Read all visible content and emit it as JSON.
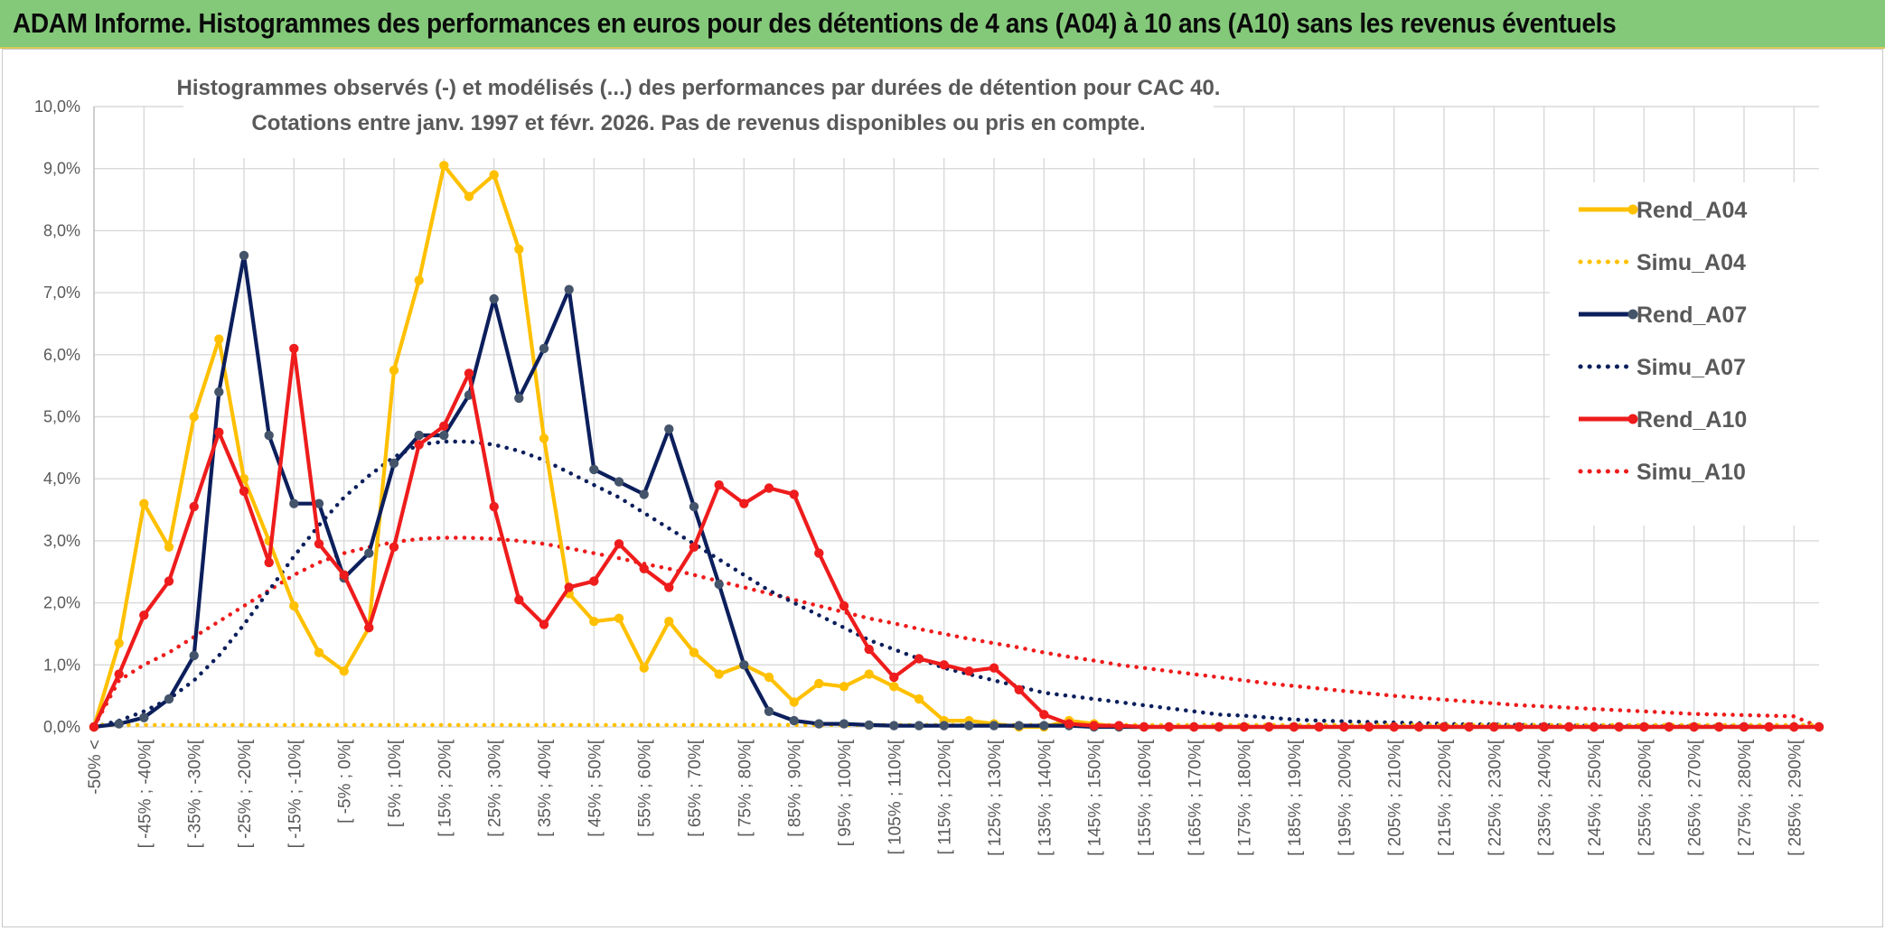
{
  "banner": {
    "title": "ADAM Informe. Histogrammes des performances en euros pour des détentions de 4 ans (A04) à 10 ans (A10) sans les revenus éventuels",
    "color": "#84c97a"
  },
  "chart_data": {
    "type": "line",
    "title": "Histogrammes observés (-) et modélisés (...) des performances par durées de détention pour CAC 40.",
    "subtitle": "Cotations entre janv. 1997 et févr. 2026. Pas de revenus disponibles ou pris en compte.",
    "xlabel": "",
    "ylabel": "",
    "ylim": [
      0,
      10
    ],
    "yticks": [
      "0,0%",
      "1,0%",
      "2,0%",
      "3,0%",
      "4,0%",
      "5,0%",
      "6,0%",
      "7,0%",
      "8,0%",
      "9,0%",
      "10,0%"
    ],
    "grid": true,
    "legend_position": "right",
    "categories": [
      "-50% <",
      "[ -50% ; -45%[",
      "[ -45% ; -40%[",
      "[ -40% ; -35%[",
      "[ -35% ; -30%[",
      "[ -30% ; -25%[",
      "[ -25% ; -20%[",
      "[ -20% ; -15%[",
      "[ -15% ; -10%[",
      "[ -10% ; -5%[",
      "[ -5% ; 0%[",
      "[ 0% ; 5%[",
      "[ 5% ; 10%[",
      "[ 10% ; 15%[",
      "[ 15% ; 20%[",
      "[ 20% ; 25%[",
      "[ 25% ; 30%[",
      "[ 30% ; 35%[",
      "[ 35% ; 40%[",
      "[ 40% ; 45%[",
      "[ 45% ; 50%[",
      "[ 50% ; 55%[",
      "[ 55% ; 60%[",
      "[ 60% ; 65%[",
      "[ 65% ; 70%[",
      "[ 70% ; 75%[",
      "[ 75% ; 80%[",
      "[ 80% ; 85%[",
      "[ 85% ; 90%[",
      "[ 90% ; 95%[",
      "[ 95% ; 100%[",
      "[ 100% ; 105%[",
      "[ 105% ; 110%[",
      "[ 110% ; 115%[",
      "[ 115% ; 120%[",
      "[ 120% ; 125%[",
      "[ 125% ; 130%[",
      "[ 130% ; 135%[",
      "[ 135% ; 140%[",
      "[ 140% ; 145%[",
      "[ 145% ; 150%[",
      "[ 150% ; 155%[",
      "[ 155% ; 160%[",
      "[ 160% ; 165%[",
      "[ 165% ; 170%[",
      "[ 170% ; 175%[",
      "[ 175% ; 180%[",
      "[ 180% ; 185%[",
      "[ 185% ; 190%[",
      "[ 190% ; 195%[",
      "[ 195% ; 200%[",
      "[ 200% ; 205%[",
      "[ 205% ; 210%[",
      "[ 210% ; 215%[",
      "[ 215% ; 220%[",
      "[ 220% ; 225%[",
      "[ 225% ; 230%[",
      "[ 230% ; 235%[",
      "[ 235% ; 240%[",
      "[ 240% ; 245%[",
      "[ 245% ; 250%[",
      "[ 250% ; 255%[",
      "[ 255% ; 260%[",
      "[ 260% ; 265%[",
      "[ 265% ; 270%[",
      "[ 270% ; 275%[",
      "[ 275% ; 280%[",
      "[ 280% ; 285%[",
      "[ 285% ; 290%[",
      "[ 290% ; 295%["
    ],
    "visible_category_labels": [
      "-50% <",
      "[ -45% ; -40%[",
      "[ -35% ; -30%[",
      "[ -25% ; -20%[",
      "[ -15% ; -10%[",
      "[ -5% ; 0%[",
      "[ 5% ; 10%[",
      "[ 15% ; 20%[",
      "[ 25% ; 30%[",
      "[ 35% ; 40%[",
      "[ 45% ; 50%[",
      "[ 55% ; 60%[",
      "[ 65% ; 70%[",
      "[ 75% ; 80%[",
      "[ 85% ; 90%[",
      "[ 95% ; 100%[",
      "[ 105% ; 110%[",
      "[ 115% ; 120%[",
      "[ 125% ; 130%[",
      "[ 135% ; 140%[",
      "[ 145% ; 150%[",
      "[ 155% ; 160%[",
      "[ 165% ; 170%[",
      "[ 175% ; 180%[",
      "[ 185% ; 190%[",
      "[ 195% ; 200%[",
      "[ 205% ; 210%[",
      "[ 215% ; 220%[",
      "[ 225% ; 230%[",
      "[ 235% ; 240%[",
      "[ 245% ; 250%[",
      "[ 255% ; 260%[",
      "[ 265% ; 270%[",
      "[ 275% ; 280%[",
      "[ 285% ; 290%["
    ],
    "series": [
      {
        "name": "Rend_A04",
        "style": "solid",
        "markers": true,
        "color": "#ffc000",
        "values": [
          0.0,
          1.35,
          3.6,
          2.9,
          5.0,
          6.25,
          4.0,
          3.0,
          1.95,
          1.2,
          0.9,
          1.6,
          5.75,
          7.2,
          9.05,
          8.55,
          8.9,
          7.7,
          4.65,
          2.15,
          1.7,
          1.75,
          0.95,
          1.7,
          1.2,
          0.85,
          1.0,
          0.8,
          0.4,
          0.7,
          0.65,
          0.85,
          0.65,
          0.45,
          0.1,
          0.1,
          0.05,
          0.0,
          0.0,
          0.1,
          0.05,
          0.0,
          0.0,
          0.0,
          0.0,
          0.0,
          0.0,
          0.0,
          0.0,
          0.0,
          0.0,
          0.0,
          0.0,
          0.0,
          0.0,
          0.0,
          0.0,
          0.0,
          0.0,
          0.0,
          0.0,
          0.0,
          0.0,
          0.0,
          0.0,
          0.0,
          0.0,
          0.0,
          0.0,
          0.0
        ]
      },
      {
        "name": "Simu_A04",
        "style": "dotted",
        "markers": false,
        "color": "#ffc000",
        "values": [
          0.03,
          0.03,
          0.03,
          0.03,
          0.03,
          0.03,
          0.03,
          0.03,
          0.03,
          0.03,
          0.03,
          0.03,
          0.03,
          0.03,
          0.03,
          0.03,
          0.03,
          0.03,
          0.03,
          0.03,
          0.03,
          0.03,
          0.03,
          0.03,
          0.03,
          0.03,
          0.03,
          0.03,
          0.03,
          0.03,
          0.03,
          0.03,
          0.03,
          0.03,
          0.03,
          0.03,
          0.03,
          0.03,
          0.03,
          0.03,
          0.03,
          0.03,
          0.03,
          0.03,
          0.03,
          0.03,
          0.03,
          0.03,
          0.03,
          0.03,
          0.03,
          0.03,
          0.03,
          0.03,
          0.03,
          0.03,
          0.03,
          0.03,
          0.03,
          0.03,
          0.03,
          0.03,
          0.03,
          0.03,
          0.03,
          0.03,
          0.03,
          0.03,
          0.03,
          0.03
        ]
      },
      {
        "name": "Rend_A07",
        "style": "solid",
        "markers": true,
        "color": "#0c1f5c",
        "values": [
          0.0,
          0.05,
          0.15,
          0.45,
          1.15,
          5.4,
          7.6,
          4.7,
          3.6,
          3.6,
          2.4,
          2.8,
          4.25,
          4.7,
          4.7,
          5.35,
          6.9,
          5.3,
          6.1,
          7.05,
          4.15,
          3.95,
          3.75,
          4.8,
          3.55,
          2.3,
          1.0,
          0.25,
          0.1,
          0.05,
          0.05,
          0.03,
          0.02,
          0.02,
          0.02,
          0.02,
          0.02,
          0.02,
          0.02,
          0.02,
          0.0,
          0.0,
          0.0,
          0.0,
          0.0,
          0.0,
          0.0,
          0.0,
          0.0,
          0.0,
          0.0,
          0.0,
          0.0,
          0.0,
          0.0,
          0.0,
          0.0,
          0.0,
          0.0,
          0.0,
          0.0,
          0.0,
          0.0,
          0.0,
          0.0,
          0.0,
          0.0,
          0.0,
          0.0,
          0.0
        ]
      },
      {
        "name": "Simu_A07",
        "style": "dotted",
        "markers": false,
        "color": "#0c1f5c",
        "values": [
          0.0,
          0.1,
          0.25,
          0.45,
          0.75,
          1.15,
          1.65,
          2.2,
          2.75,
          3.25,
          3.7,
          4.05,
          4.35,
          4.55,
          4.6,
          4.6,
          4.55,
          4.45,
          4.3,
          4.1,
          3.9,
          3.7,
          3.45,
          3.2,
          2.95,
          2.7,
          2.45,
          2.2,
          2.0,
          1.8,
          1.6,
          1.4,
          1.25,
          1.1,
          0.95,
          0.85,
          0.75,
          0.65,
          0.55,
          0.5,
          0.45,
          0.4,
          0.35,
          0.3,
          0.25,
          0.2,
          0.18,
          0.15,
          0.12,
          0.1,
          0.09,
          0.08,
          0.07,
          0.06,
          0.05,
          0.04,
          0.04,
          0.03,
          0.03,
          0.02,
          0.02,
          0.02,
          0.01,
          0.01,
          0.01,
          0.01,
          0.01,
          0.0,
          0.0,
          0.0
        ]
      },
      {
        "name": "Rend_A10",
        "style": "solid",
        "markers": true,
        "color": "#ee1c1c",
        "values": [
          0.0,
          0.85,
          1.8,
          2.35,
          3.55,
          4.75,
          3.8,
          2.65,
          6.1,
          2.95,
          2.45,
          1.6,
          2.9,
          4.55,
          4.85,
          5.7,
          3.55,
          2.05,
          1.65,
          2.25,
          2.35,
          2.95,
          2.55,
          2.25,
          2.9,
          3.9,
          3.6,
          3.85,
          3.75,
          2.8,
          1.95,
          1.25,
          0.8,
          1.1,
          1.0,
          0.9,
          0.95,
          0.6,
          0.2,
          0.05,
          0.02,
          0.02,
          0.0,
          0.0,
          0.0,
          0.0,
          0.0,
          0.0,
          0.0,
          0.0,
          0.0,
          0.0,
          0.0,
          0.0,
          0.0,
          0.0,
          0.0,
          0.0,
          0.0,
          0.0,
          0.0,
          0.0,
          0.0,
          0.0,
          0.0,
          0.0,
          0.0,
          0.0,
          0.0,
          0.0
        ]
      },
      {
        "name": "Simu_A10",
        "style": "dotted",
        "markers": false,
        "color": "#ee1c1c",
        "values": [
          0.0,
          0.75,
          1.0,
          1.2,
          1.45,
          1.7,
          1.95,
          2.2,
          2.45,
          2.65,
          2.8,
          2.9,
          2.98,
          3.03,
          3.05,
          3.05,
          3.03,
          3.0,
          2.95,
          2.88,
          2.8,
          2.72,
          2.63,
          2.55,
          2.45,
          2.35,
          2.25,
          2.15,
          2.05,
          1.95,
          1.85,
          1.75,
          1.67,
          1.58,
          1.5,
          1.42,
          1.35,
          1.28,
          1.2,
          1.13,
          1.07,
          1.0,
          0.95,
          0.9,
          0.85,
          0.8,
          0.75,
          0.7,
          0.66,
          0.62,
          0.58,
          0.54,
          0.5,
          0.47,
          0.44,
          0.41,
          0.38,
          0.35,
          0.33,
          0.31,
          0.29,
          0.27,
          0.25,
          0.23,
          0.21,
          0.2,
          0.19,
          0.18,
          0.17,
          0.0
        ]
      }
    ]
  }
}
